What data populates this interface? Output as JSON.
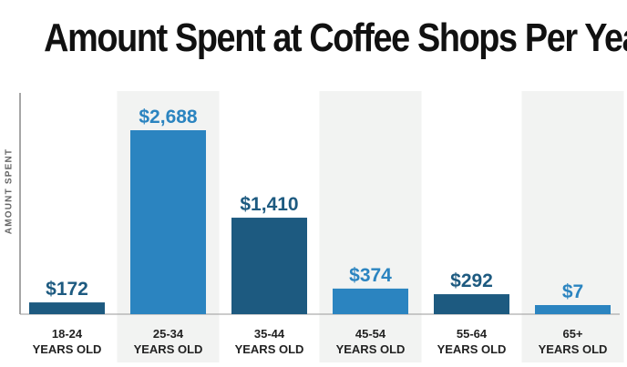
{
  "chart_data": {
    "type": "bar",
    "title": "Amount Spent at Coffee Shops Per Year",
    "ylabel": "AMOUNT SPENT",
    "xlabel": "",
    "categories": [
      [
        "18-24",
        "YEARS OLD"
      ],
      [
        "25-34",
        "YEARS OLD"
      ],
      [
        "35-44",
        "YEARS OLD"
      ],
      [
        "45-54",
        "YEARS OLD"
      ],
      [
        "55-64",
        "YEARS OLD"
      ],
      [
        "65+",
        "YEARS OLD"
      ]
    ],
    "values": [
      172,
      2688,
      1410,
      374,
      292,
      7
    ],
    "value_labels": [
      "$172",
      "$2,688",
      "$1,410",
      "$374",
      "$292",
      "$7"
    ],
    "ylim": [
      0,
      2688
    ],
    "grid": false,
    "colors": {
      "dark_bar": "#1d5a80",
      "light_bar": "#2b84c0",
      "band": "#f2f3f2",
      "axis": "#888888",
      "title": "#111111"
    }
  }
}
